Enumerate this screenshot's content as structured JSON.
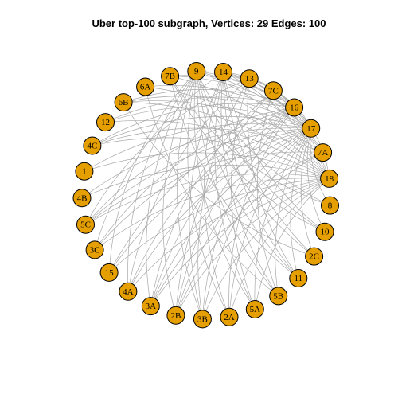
{
  "title": "Uber top-100 subgraph, Vertices: 29 Edges: 100",
  "chart_data": {
    "type": "network",
    "layout": "circle",
    "title": "Uber top-100 subgraph, Vertices: 29 Edges: 100",
    "vertex_count": 29,
    "edge_count": 100,
    "node_color": "#e69f00",
    "edge_color": "#a9a9a9",
    "nodes": [
      "9",
      "14",
      "13",
      "7C",
      "16",
      "17",
      "7A",
      "18",
      "8",
      "10",
      "2C",
      "11",
      "5B",
      "5A",
      "2A",
      "3B",
      "2B",
      "3A",
      "4A",
      "15",
      "3C",
      "5C",
      "4B",
      "1",
      "4C",
      "12",
      "6B",
      "6A",
      "7B"
    ],
    "edges": [
      [
        "17",
        "9"
      ],
      [
        "17",
        "14"
      ],
      [
        "17",
        "13"
      ],
      [
        "17",
        "7B"
      ],
      [
        "17",
        "6A"
      ],
      [
        "17",
        "6B"
      ],
      [
        "17",
        "12"
      ],
      [
        "17",
        "4C"
      ],
      [
        "17",
        "1"
      ],
      [
        "17",
        "4B"
      ],
      [
        "17",
        "5C"
      ],
      [
        "17",
        "3C"
      ],
      [
        "17",
        "15"
      ],
      [
        "17",
        "4A"
      ],
      [
        "17",
        "3A"
      ],
      [
        "17",
        "2B"
      ],
      [
        "17",
        "3B"
      ],
      [
        "17",
        "2A"
      ],
      [
        "17",
        "5A"
      ],
      [
        "17",
        "5B"
      ],
      [
        "17",
        "11"
      ],
      [
        "17",
        "2C"
      ],
      [
        "17",
        "10"
      ],
      [
        "17",
        "8"
      ],
      [
        "17",
        "7C"
      ],
      [
        "18",
        "9"
      ],
      [
        "18",
        "14"
      ],
      [
        "18",
        "13"
      ],
      [
        "18",
        "7B"
      ],
      [
        "18",
        "6A"
      ],
      [
        "18",
        "6B"
      ],
      [
        "18",
        "12"
      ],
      [
        "18",
        "4C"
      ],
      [
        "18",
        "1"
      ],
      [
        "18",
        "4B"
      ],
      [
        "18",
        "5C"
      ],
      [
        "18",
        "3C"
      ],
      [
        "18",
        "15"
      ],
      [
        "18",
        "4A"
      ],
      [
        "18",
        "3A"
      ],
      [
        "18",
        "2B"
      ],
      [
        "18",
        "3B"
      ],
      [
        "18",
        "2A"
      ],
      [
        "18",
        "5A"
      ],
      [
        "18",
        "16"
      ],
      [
        "16",
        "9"
      ],
      [
        "16",
        "14"
      ],
      [
        "16",
        "13"
      ],
      [
        "16",
        "7B"
      ],
      [
        "16",
        "6B"
      ],
      [
        "16",
        "12"
      ],
      [
        "16",
        "4C"
      ],
      [
        "16",
        "5C"
      ],
      [
        "16",
        "3C"
      ],
      [
        "16",
        "15"
      ],
      [
        "16",
        "4A"
      ],
      [
        "16",
        "3A"
      ],
      [
        "16",
        "2B"
      ],
      [
        "16",
        "3B"
      ],
      [
        "16",
        "2A"
      ],
      [
        "7A",
        "9"
      ],
      [
        "7A",
        "14"
      ],
      [
        "7A",
        "6B"
      ],
      [
        "7A",
        "4C"
      ],
      [
        "7A",
        "5C"
      ],
      [
        "7A",
        "3A"
      ],
      [
        "7A",
        "2B"
      ],
      [
        "9",
        "2B"
      ],
      [
        "9",
        "3B"
      ],
      [
        "9",
        "2A"
      ],
      [
        "9",
        "5A"
      ],
      [
        "9",
        "5B"
      ],
      [
        "9",
        "11"
      ],
      [
        "9",
        "2C"
      ],
      [
        "9",
        "10"
      ],
      [
        "9",
        "8"
      ],
      [
        "9",
        "3A"
      ],
      [
        "9",
        "4A"
      ],
      [
        "9",
        "15"
      ],
      [
        "14",
        "2A"
      ],
      [
        "14",
        "5A"
      ],
      [
        "14",
        "5B"
      ],
      [
        "14",
        "11"
      ],
      [
        "14",
        "3B"
      ],
      [
        "14",
        "2C"
      ],
      [
        "14",
        "10"
      ],
      [
        "14",
        "3C"
      ],
      [
        "13",
        "3B"
      ],
      [
        "13",
        "5A"
      ],
      [
        "13",
        "11"
      ],
      [
        "13",
        "5C"
      ],
      [
        "13",
        "4A"
      ],
      [
        "7C",
        "5B"
      ],
      [
        "7C",
        "2B"
      ],
      [
        "7C",
        "3A"
      ],
      [
        "7B",
        "8"
      ],
      [
        "7B",
        "10"
      ],
      [
        "7B",
        "11"
      ],
      [
        "6A",
        "5B"
      ],
      [
        "6B",
        "2C"
      ]
    ]
  }
}
